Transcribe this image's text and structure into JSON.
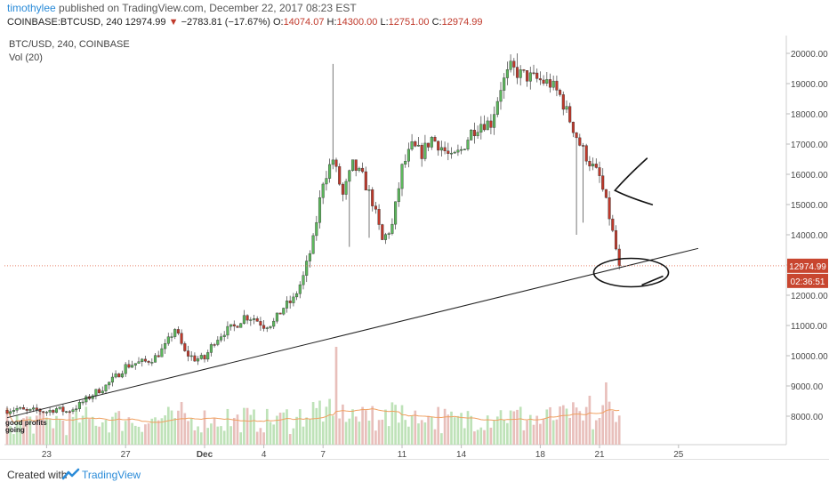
{
  "header": {
    "username": "timothylee",
    "published_text": "published on TradingView.com, December 22, 2017 08:23 EST",
    "symbol_line": "COINBASE:BTCUSD, 240",
    "last": "12974.99",
    "change_arrow": "▼",
    "change": "−2783.81 (−17.67%)",
    "o_label": "O:",
    "o_value": "14074.07",
    "h_label": "H:",
    "h_value": "14300.00",
    "l_label": "L:",
    "l_value": "12751.00",
    "c_label": "C:",
    "c_value": "12974.99"
  },
  "legend": {
    "symbol": "BTC/USD, 240, COINBASE",
    "volume": "Vol (20)"
  },
  "watermark": {
    "line1": "good profits",
    "line2": "going"
  },
  "price_tag": "12974.99",
  "countdown_tag": "02:36:51",
  "footer": {
    "created_with": "Created with",
    "brand": "TradingView"
  },
  "colors": {
    "up": "#5cb85c",
    "down": "#c0392b",
    "price_line": "#e8826a",
    "tag_bg": "#c8462f",
    "accent": "#2a8bd8"
  },
  "chart_data": {
    "type": "candlestick",
    "symbol": "BTC/USD",
    "interval": "240",
    "ylim": [
      7100,
      20400
    ],
    "y_ticks": [
      8000,
      9000,
      10000,
      11000,
      12000,
      13000,
      14000,
      15000,
      16000,
      17000,
      18000,
      19000,
      20000
    ],
    "y_tick_labels": [
      "8000.00",
      "9000.00",
      "10000.00",
      "11000.00",
      "12000.00",
      "13000.00",
      "14000.00",
      "15000.00",
      "16000.00",
      "17000.00",
      "18000.00",
      "19000.00",
      "20000.00"
    ],
    "x_ticks": [
      {
        "label": "23",
        "day": 23
      },
      {
        "label": "27",
        "day": 27
      },
      {
        "label": "Dec",
        "day": 31
      },
      {
        "label": "4",
        "day": 34
      },
      {
        "label": "7",
        "day": 37
      },
      {
        "label": "11",
        "day": 41
      },
      {
        "label": "14",
        "day": 44
      },
      {
        "label": "18",
        "day": 48
      },
      {
        "label": "21",
        "day": 51
      },
      {
        "label": "25",
        "day": 55
      }
    ],
    "last_price": 12974.99,
    "close_path": [
      [
        21.0,
        8200
      ],
      [
        21.5,
        8250
      ],
      [
        22.0,
        8150
      ],
      [
        22.5,
        8200
      ],
      [
        23.0,
        8150
      ],
      [
        23.5,
        8250
      ],
      [
        24.0,
        8150
      ],
      [
        24.5,
        8300
      ],
      [
        25.0,
        8550
      ],
      [
        25.5,
        8800
      ],
      [
        26.0,
        9000
      ],
      [
        26.5,
        9300
      ],
      [
        27.0,
        9650
      ],
      [
        27.5,
        9750
      ],
      [
        28.0,
        9800
      ],
      [
        28.5,
        9950
      ],
      [
        29.0,
        10300
      ],
      [
        29.5,
        10900
      ],
      [
        30.0,
        10100
      ],
      [
        30.5,
        9900
      ],
      [
        31.0,
        9900
      ],
      [
        31.5,
        10500
      ],
      [
        32.0,
        10800
      ],
      [
        32.5,
        10950
      ],
      [
        33.0,
        11300
      ],
      [
        33.5,
        11250
      ],
      [
        34.0,
        11000
      ],
      [
        34.5,
        11100
      ],
      [
        35.0,
        11600
      ],
      [
        35.5,
        11850
      ],
      [
        36.0,
        12600
      ],
      [
        36.5,
        13800
      ],
      [
        37.0,
        15800
      ],
      [
        37.5,
        16500
      ],
      [
        38.0,
        15300
      ],
      [
        38.5,
        16300
      ],
      [
        39.0,
        15900
      ],
      [
        39.5,
        15100
      ],
      [
        40.0,
        13800
      ],
      [
        40.5,
        14300
      ],
      [
        41.0,
        16200
      ],
      [
        41.5,
        16900
      ],
      [
        42.0,
        16700
      ],
      [
        42.5,
        17200
      ],
      [
        43.0,
        16900
      ],
      [
        43.5,
        16500
      ],
      [
        44.0,
        16800
      ],
      [
        44.5,
        17400
      ],
      [
        45.0,
        17700
      ],
      [
        45.5,
        17700
      ],
      [
        46.0,
        18900
      ],
      [
        46.5,
        19500
      ],
      [
        47.0,
        19300
      ],
      [
        47.5,
        19200
      ],
      [
        48.0,
        19100
      ],
      [
        48.5,
        19000
      ],
      [
        49.0,
        18600
      ],
      [
        49.5,
        17800
      ],
      [
        50.0,
        17000
      ],
      [
        50.5,
        16400
      ],
      [
        51.0,
        15900
      ],
      [
        51.5,
        14600
      ],
      [
        52.0,
        12975
      ]
    ],
    "trendline": {
      "from": [
        21.0,
        7950
      ],
      "to": [
        56.0,
        13550
      ]
    },
    "annotations": [
      "arrow",
      "ellipse"
    ],
    "volume": {
      "label": "Vol (20)",
      "ma_length": 20,
      "peak_days": [
        37.6,
        51.3,
        50.5
      ]
    }
  }
}
